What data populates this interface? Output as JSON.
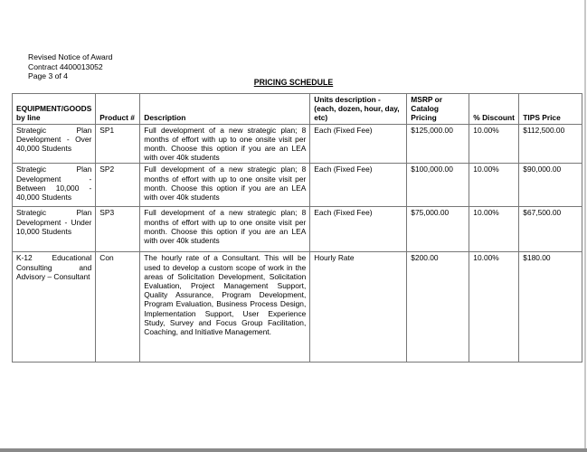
{
  "header": {
    "lines": [
      "Revised Notice of Award",
      "Contract 4400013052",
      "Page 3 of 4"
    ]
  },
  "title": "PRICING SCHEDULE",
  "table": {
    "columns": [
      "EQUIPMENT/GOODS by line",
      "Product #",
      "Description",
      "Units description - (each, dozen, hour, day, etc)",
      "MSRP or Catalog Pricing",
      "% Discount",
      "TIPS Price"
    ],
    "rows": [
      [
        "Strategic Plan Development - Over 40,000 Students",
        "SP1",
        "Full development of a new strategic plan; 8 months of effort with up to one onsite visit per month. Choose this option if you are an LEA with over 40k students",
        "Each (Fixed Fee)",
        "$125,000.00",
        "10.00%",
        "$112,500.00"
      ],
      [
        "Strategic Plan Development - Between 10,000 - 40,000 Students",
        "SP2",
        "Full development of a new strategic plan; 8 months of effort with up to one onsite visit per month. Choose this option if you are an LEA with over 40k students",
        "Each (Fixed Fee)",
        "$100,000.00",
        "10.00%",
        "$90,000.00"
      ],
      [
        "Strategic Plan Development - Under 10,000 Students",
        "SP3",
        "Full development of a new strategic plan; 8 months of effort with up to one onsite visit per month. Choose this option if you are an LEA with over 40k students",
        "Each (Fixed Fee)",
        "$75,000.00",
        "10.00%",
        "$67,500.00"
      ],
      [
        "K-12 Educational Consulting and Advisory – Consultant",
        "Con",
        "The hourly rate of a Consultant. This will be used to develop a custom scope of work in the areas of Solicitation Development, Solicitation Evaluation, Project Management Support, Quality Assurance, Program Development, Program Evaluation, Business Process Design, Implementation Support, User Experience Study, Survey and Focus Group Facilitation, Coaching, and Initiative Management.",
        "Hourly Rate",
        "$200.00",
        "10.00%",
        "$180.00"
      ]
    ]
  }
}
